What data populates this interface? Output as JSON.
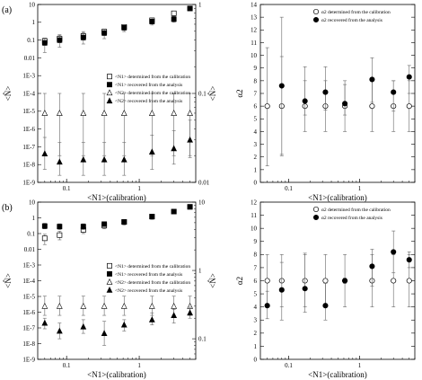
{
  "chart_data": [
    {
      "type": "scatter",
      "panel_label": "(a)",
      "xlabel": "<N1>(calibration)",
      "ylabel_left": "<N̂>",
      "ylabel_right": "<N̂>",
      "xscale": "log",
      "xlim": [
        0.04,
        6
      ],
      "yscale_left": "log",
      "ylim_left": [
        1e-09,
        10
      ],
      "yscale_right": "log",
      "ylim_right": [
        0.01,
        1
      ],
      "tick_labels_left": [
        "1E-9",
        "1E-8",
        "1E-7",
        "1E-6",
        "1E-5",
        "1E-4",
        "1E-3",
        "0.01",
        "0.1",
        "1",
        "10"
      ],
      "tick_labels_right": [
        "0.01",
        "0.1",
        "1"
      ],
      "tick_labels_x": [
        "0.1",
        "1"
      ],
      "legend_position": "center-right",
      "series": [
        {
          "name": "<N1> determined from the calibration",
          "axis": "left",
          "marker": "open-square",
          "x": [
            0.05,
            0.08,
            0.17,
            0.33,
            0.62,
            1.5,
            3,
            5
          ],
          "y": [
            0.09,
            0.12,
            0.17,
            0.3,
            0.55,
            1.3,
            3.2,
            6
          ],
          "err_lo": [
            0.05,
            0.07,
            0.1,
            0.18,
            0.35,
            0.9,
            2.2,
            4.5
          ],
          "err_hi": [
            0.13,
            0.18,
            0.26,
            0.42,
            0.75,
            1.7,
            4,
            7.5
          ]
        },
        {
          "name": "<N1> recovered from the analysis",
          "axis": "left",
          "marker": "filled-square",
          "x": [
            0.05,
            0.08,
            0.17,
            0.33,
            0.62,
            1.5,
            3,
            5
          ],
          "y": [
            0.07,
            0.1,
            0.14,
            0.25,
            0.5,
            1.1,
            1.5,
            6
          ],
          "err_lo": [
            0.02,
            0.04,
            0.06,
            0.12,
            0.3,
            0.7,
            1.0,
            4.5
          ],
          "err_hi": [
            0.13,
            0.2,
            0.3,
            0.42,
            0.75,
            1.7,
            2.2,
            7.5
          ]
        },
        {
          "name": "<N2> determined from the calibration",
          "axis": "right",
          "marker": "open-triangle",
          "x": [
            0.05,
            0.08,
            0.17,
            0.33,
            0.62,
            1.5,
            3,
            5
          ],
          "y": [
            0.06,
            0.06,
            0.06,
            0.06,
            0.06,
            0.06,
            0.06,
            0.06
          ],
          "err_lo": [
            0.02,
            0.02,
            0.02,
            0.02,
            0.02,
            0.02,
            0.02,
            0.02
          ],
          "err_hi": [
            0.1,
            0.1,
            0.1,
            0.1,
            0.1,
            0.1,
            0.1,
            0.1
          ]
        },
        {
          "name": "<N2> recovered from the analysis",
          "axis": "right",
          "marker": "filled-triangle",
          "x": [
            0.05,
            0.08,
            0.17,
            0.33,
            0.62,
            1.5,
            3,
            5
          ],
          "y": [
            0.021,
            0.017,
            0.018,
            0.018,
            0.018,
            0.022,
            0.024,
            0.03
          ],
          "err_lo": [
            0.014,
            0.012,
            0.012,
            0.012,
            0.012,
            0.014,
            0.016,
            0.019
          ],
          "err_hi": [
            0.032,
            0.028,
            0.028,
            0.028,
            0.028,
            0.034,
            0.038,
            0.05
          ]
        }
      ]
    },
    {
      "type": "scatter",
      "panel_label": "",
      "xlabel": "<N1>(calibration)",
      "ylabel": "α2",
      "xscale": "log",
      "xlim": [
        0.04,
        6
      ],
      "yscale": "linear",
      "ylim": [
        0,
        14
      ],
      "tick_labels_y": [
        "0",
        "1",
        "2",
        "3",
        "4",
        "5",
        "6",
        "7",
        "8",
        "9",
        "10",
        "11",
        "12",
        "13",
        "14"
      ],
      "tick_labels_x": [
        "0.1",
        "1"
      ],
      "legend_position": "top-right",
      "series": [
        {
          "name": "α2 determined from the calibration",
          "marker": "open-circle",
          "x": [
            0.05,
            0.08,
            0.17,
            0.33,
            0.62,
            1.5,
            3,
            5
          ],
          "y": [
            6,
            6,
            6,
            6,
            6,
            6,
            6,
            6
          ],
          "err_lo": [
            1.3,
            2.2,
            4,
            4,
            4,
            4,
            4,
            4
          ],
          "err_hi": [
            10.6,
            9.9,
            8,
            8,
            8,
            8,
            8,
            8
          ]
        },
        {
          "name": "α2 recovered from the analysis",
          "marker": "filled-circle",
          "x": [
            0.08,
            0.17,
            0.33,
            0.62,
            1.5,
            3,
            5
          ],
          "y": [
            7.6,
            6.4,
            7.1,
            6.2,
            8.1,
            7.1,
            8.3
          ],
          "err_lo": [
            2.1,
            5.3,
            5.7,
            5.3,
            6.3,
            5.6,
            7.0
          ],
          "err_hi": [
            13.0,
            9.1,
            9.1,
            7.7,
            9.8,
            8.0,
            9.2
          ]
        }
      ]
    },
    {
      "type": "scatter",
      "panel_label": "(b)",
      "xlabel": "<N1>(calibration)",
      "ylabel_left": "<N̂>",
      "ylabel_right": "<N̂>",
      "xscale": "log",
      "xlim": [
        0.04,
        6
      ],
      "yscale_left": "log",
      "ylim_left": [
        1e-09,
        10
      ],
      "yscale_right": "log",
      "ylim_right": [
        0.05,
        10
      ],
      "tick_labels_left": [
        "1E-9",
        "1E-8",
        "1E-7",
        "1E-6",
        "1E-5",
        "1E-4",
        "1E-3",
        "0.01",
        "0.1",
        "1",
        "10"
      ],
      "tick_labels_right": [
        "0.1",
        "1",
        "10"
      ],
      "tick_labels_x": [
        "0.1",
        "1"
      ],
      "legend_position": "center-right",
      "series": [
        {
          "name": "<N1> determined from the calibration",
          "axis": "left",
          "marker": "open-square",
          "x": [
            0.05,
            0.08,
            0.17,
            0.33,
            0.62,
            1.5,
            3,
            5
          ],
          "y": [
            0.05,
            0.08,
            0.17,
            0.32,
            0.55,
            1.2,
            2.5,
            5
          ],
          "err_lo": [
            0.02,
            0.04,
            0.1,
            0.2,
            0.35,
            0.8,
            1.8,
            3.8
          ],
          "err_hi": [
            0.09,
            0.14,
            0.28,
            0.45,
            0.75,
            1.7,
            3.2,
            6.5
          ]
        },
        {
          "name": "<N1> recovered from the analysis",
          "axis": "left",
          "marker": "filled-square",
          "x": [
            0.05,
            0.08,
            0.17,
            0.33,
            0.62,
            1.5,
            3,
            5
          ],
          "y": [
            0.3,
            0.28,
            0.28,
            0.4,
            0.55,
            1.2,
            2.5,
            5
          ],
          "err_lo": [
            0.2,
            0.18,
            0.18,
            0.28,
            0.4,
            0.9,
            1.8,
            3.8
          ],
          "err_hi": [
            0.45,
            0.42,
            0.42,
            0.55,
            0.75,
            1.7,
            3.2,
            6.5
          ]
        },
        {
          "name": "<N2> determined from the calibration",
          "axis": "right",
          "marker": "open-triangle",
          "x": [
            0.05,
            0.08,
            0.17,
            0.33,
            0.62,
            1.5,
            3,
            5
          ],
          "y": [
            0.3,
            0.3,
            0.3,
            0.3,
            0.3,
            0.3,
            0.3,
            0.3
          ],
          "err_lo": [
            0.22,
            0.22,
            0.22,
            0.22,
            0.22,
            0.22,
            0.22,
            0.22
          ],
          "err_hi": [
            0.42,
            0.42,
            0.42,
            0.42,
            0.42,
            0.42,
            0.42,
            0.42
          ]
        },
        {
          "name": "<N2> recovered from the analysis",
          "axis": "right",
          "marker": "filled-triangle",
          "x": [
            0.05,
            0.08,
            0.17,
            0.33,
            0.62,
            1.5,
            3,
            5
          ],
          "y": [
            0.17,
            0.13,
            0.15,
            0.12,
            0.16,
            0.19,
            0.22,
            0.24
          ],
          "err_lo": [
            0.14,
            0.1,
            0.12,
            0.08,
            0.13,
            0.16,
            0.17,
            0.2
          ],
          "err_hi": [
            0.2,
            0.17,
            0.19,
            0.18,
            0.19,
            0.24,
            0.27,
            0.29
          ]
        }
      ]
    },
    {
      "type": "scatter",
      "panel_label": "",
      "xlabel": "<N1>(calibration)",
      "ylabel": "α2",
      "xscale": "log",
      "xlim": [
        0.04,
        6
      ],
      "yscale": "linear",
      "ylim": [
        0,
        12
      ],
      "tick_labels_y": [
        "0",
        "1",
        "2",
        "3",
        "4",
        "5",
        "6",
        "7",
        "8",
        "9",
        "10",
        "11",
        "12"
      ],
      "tick_labels_x": [
        "0.1",
        "1"
      ],
      "legend_position": "top-right",
      "series": [
        {
          "name": "α2 determined from the calibration",
          "marker": "open-circle",
          "x": [
            0.05,
            0.08,
            0.17,
            0.33,
            0.62,
            1.5,
            3,
            5
          ],
          "y": [
            6,
            6,
            6,
            6,
            6,
            6,
            6,
            6
          ],
          "err_lo": [
            4,
            4,
            4,
            4,
            4,
            4,
            4,
            4
          ],
          "err_hi": [
            8,
            8,
            8,
            8,
            8,
            8,
            8,
            8
          ]
        },
        {
          "name": "α2 recovered from the analysis",
          "marker": "filled-circle",
          "x": [
            0.05,
            0.08,
            0.17,
            0.33,
            0.62,
            1.5,
            3,
            5
          ],
          "y": [
            4.1,
            5.3,
            5.4,
            4.1,
            6.0,
            7.1,
            8.2,
            7.6
          ],
          "err_lo": [
            3.1,
            3.0,
            3.6,
            3.0,
            5.8,
            5.6,
            6.6,
            7.0
          ],
          "err_hi": [
            5.2,
            7.4,
            8.1,
            5.8,
            6.2,
            8.4,
            9.8,
            8.2
          ]
        }
      ]
    }
  ]
}
